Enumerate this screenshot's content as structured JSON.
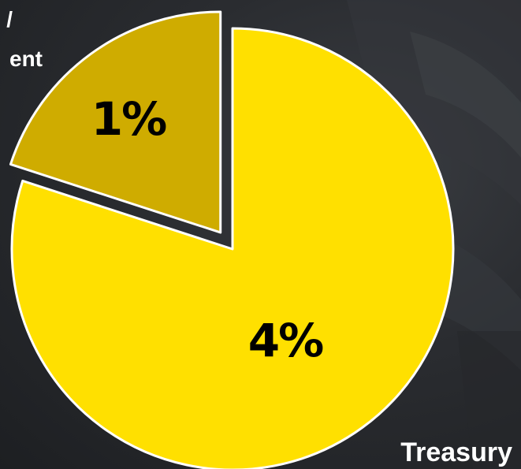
{
  "chart_data": {
    "type": "pie",
    "title": "",
    "slices": [
      {
        "name": "Treasury",
        "value": 4,
        "label": "4%",
        "color": "#ffe000"
      },
      {
        "name_visible_fragment": "/ ent",
        "value": 1,
        "label": "1%",
        "color": "#cfac00"
      }
    ],
    "category_labels": {
      "treasury": "Treasury",
      "partial_line1": "/",
      "partial_line2": "ent"
    },
    "exploded_slice_index": 1,
    "slice_border_color": "#ffffff",
    "label_color": "#000000"
  },
  "colors": {
    "background": "#2a2c30",
    "major_slice": "#ffe000",
    "minor_slice": "#cfac00",
    "border": "#ffffff"
  }
}
